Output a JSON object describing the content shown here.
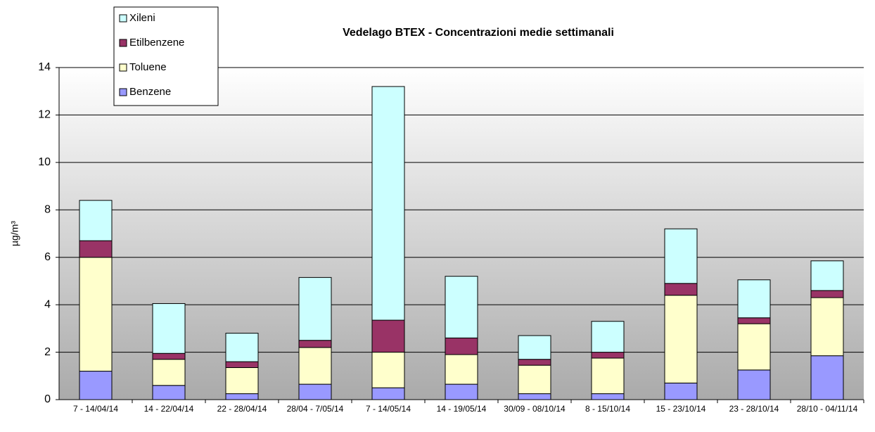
{
  "chart_data": {
    "type": "stacked_bar",
    "title": "Vedelago BTEX - Concentrazioni medie settimanali",
    "y_label": "µg/m³",
    "categories": [
      "7 - 14/04/14",
      "14 - 22/04/14",
      "22 - 28/04/14",
      "28/04 - 7/05/14",
      "7 - 14/05/14",
      "14 - 19/05/14",
      "30/09 - 08/10/14",
      "8 - 15/10/14",
      "15 - 23/10/14",
      "23 - 28/10/14",
      "28/10 - 04/11/14"
    ],
    "series": [
      {
        "name": "Benzene",
        "color": "#9999ff",
        "values": [
          1.2,
          0.6,
          0.25,
          0.65,
          0.5,
          0.65,
          0.25,
          0.25,
          0.7,
          1.25,
          1.85
        ]
      },
      {
        "name": "Toluene",
        "color": "#ffffcc",
        "values": [
          4.8,
          1.1,
          1.1,
          1.55,
          1.5,
          1.25,
          1.2,
          1.5,
          3.7,
          1.95,
          2.45
        ]
      },
      {
        "name": "Etilbenzene",
        "color": "#993366",
        "values": [
          0.7,
          0.25,
          0.25,
          0.3,
          1.35,
          0.7,
          0.25,
          0.25,
          0.5,
          0.25,
          0.3
        ]
      },
      {
        "name": "Xileni",
        "color": "#ccffff",
        "values": [
          1.7,
          2.1,
          1.2,
          2.65,
          9.85,
          2.6,
          1.0,
          1.3,
          2.3,
          1.6,
          1.25
        ]
      }
    ],
    "ylim": [
      0,
      14
    ],
    "yticks": [
      0,
      2,
      4,
      6,
      8,
      10,
      12,
      14
    ],
    "grid": true,
    "legend": "top-left"
  }
}
